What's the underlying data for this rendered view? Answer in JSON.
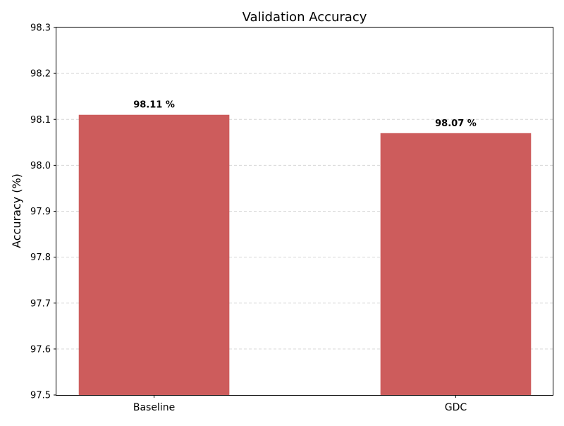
{
  "chart_data": {
    "type": "bar",
    "title": "Validation Accuracy",
    "xlabel": "",
    "ylabel": "Accuracy (%)",
    "categories": [
      "Baseline",
      "GDC"
    ],
    "values": [
      98.11,
      98.07
    ],
    "data_labels": [
      "98.11 %",
      "98.07 %"
    ],
    "ylim": [
      97.5,
      98.3
    ],
    "yticks": [
      97.5,
      97.6,
      97.7,
      97.8,
      97.9,
      98.0,
      98.1,
      98.2,
      98.3
    ],
    "ytick_labels": [
      "97.5",
      "97.6",
      "97.7",
      "97.8",
      "97.9",
      "98.0",
      "98.1",
      "98.2",
      "98.3"
    ],
    "grid": "horizontal-dashed",
    "bar_color": "#cd5c5c"
  }
}
